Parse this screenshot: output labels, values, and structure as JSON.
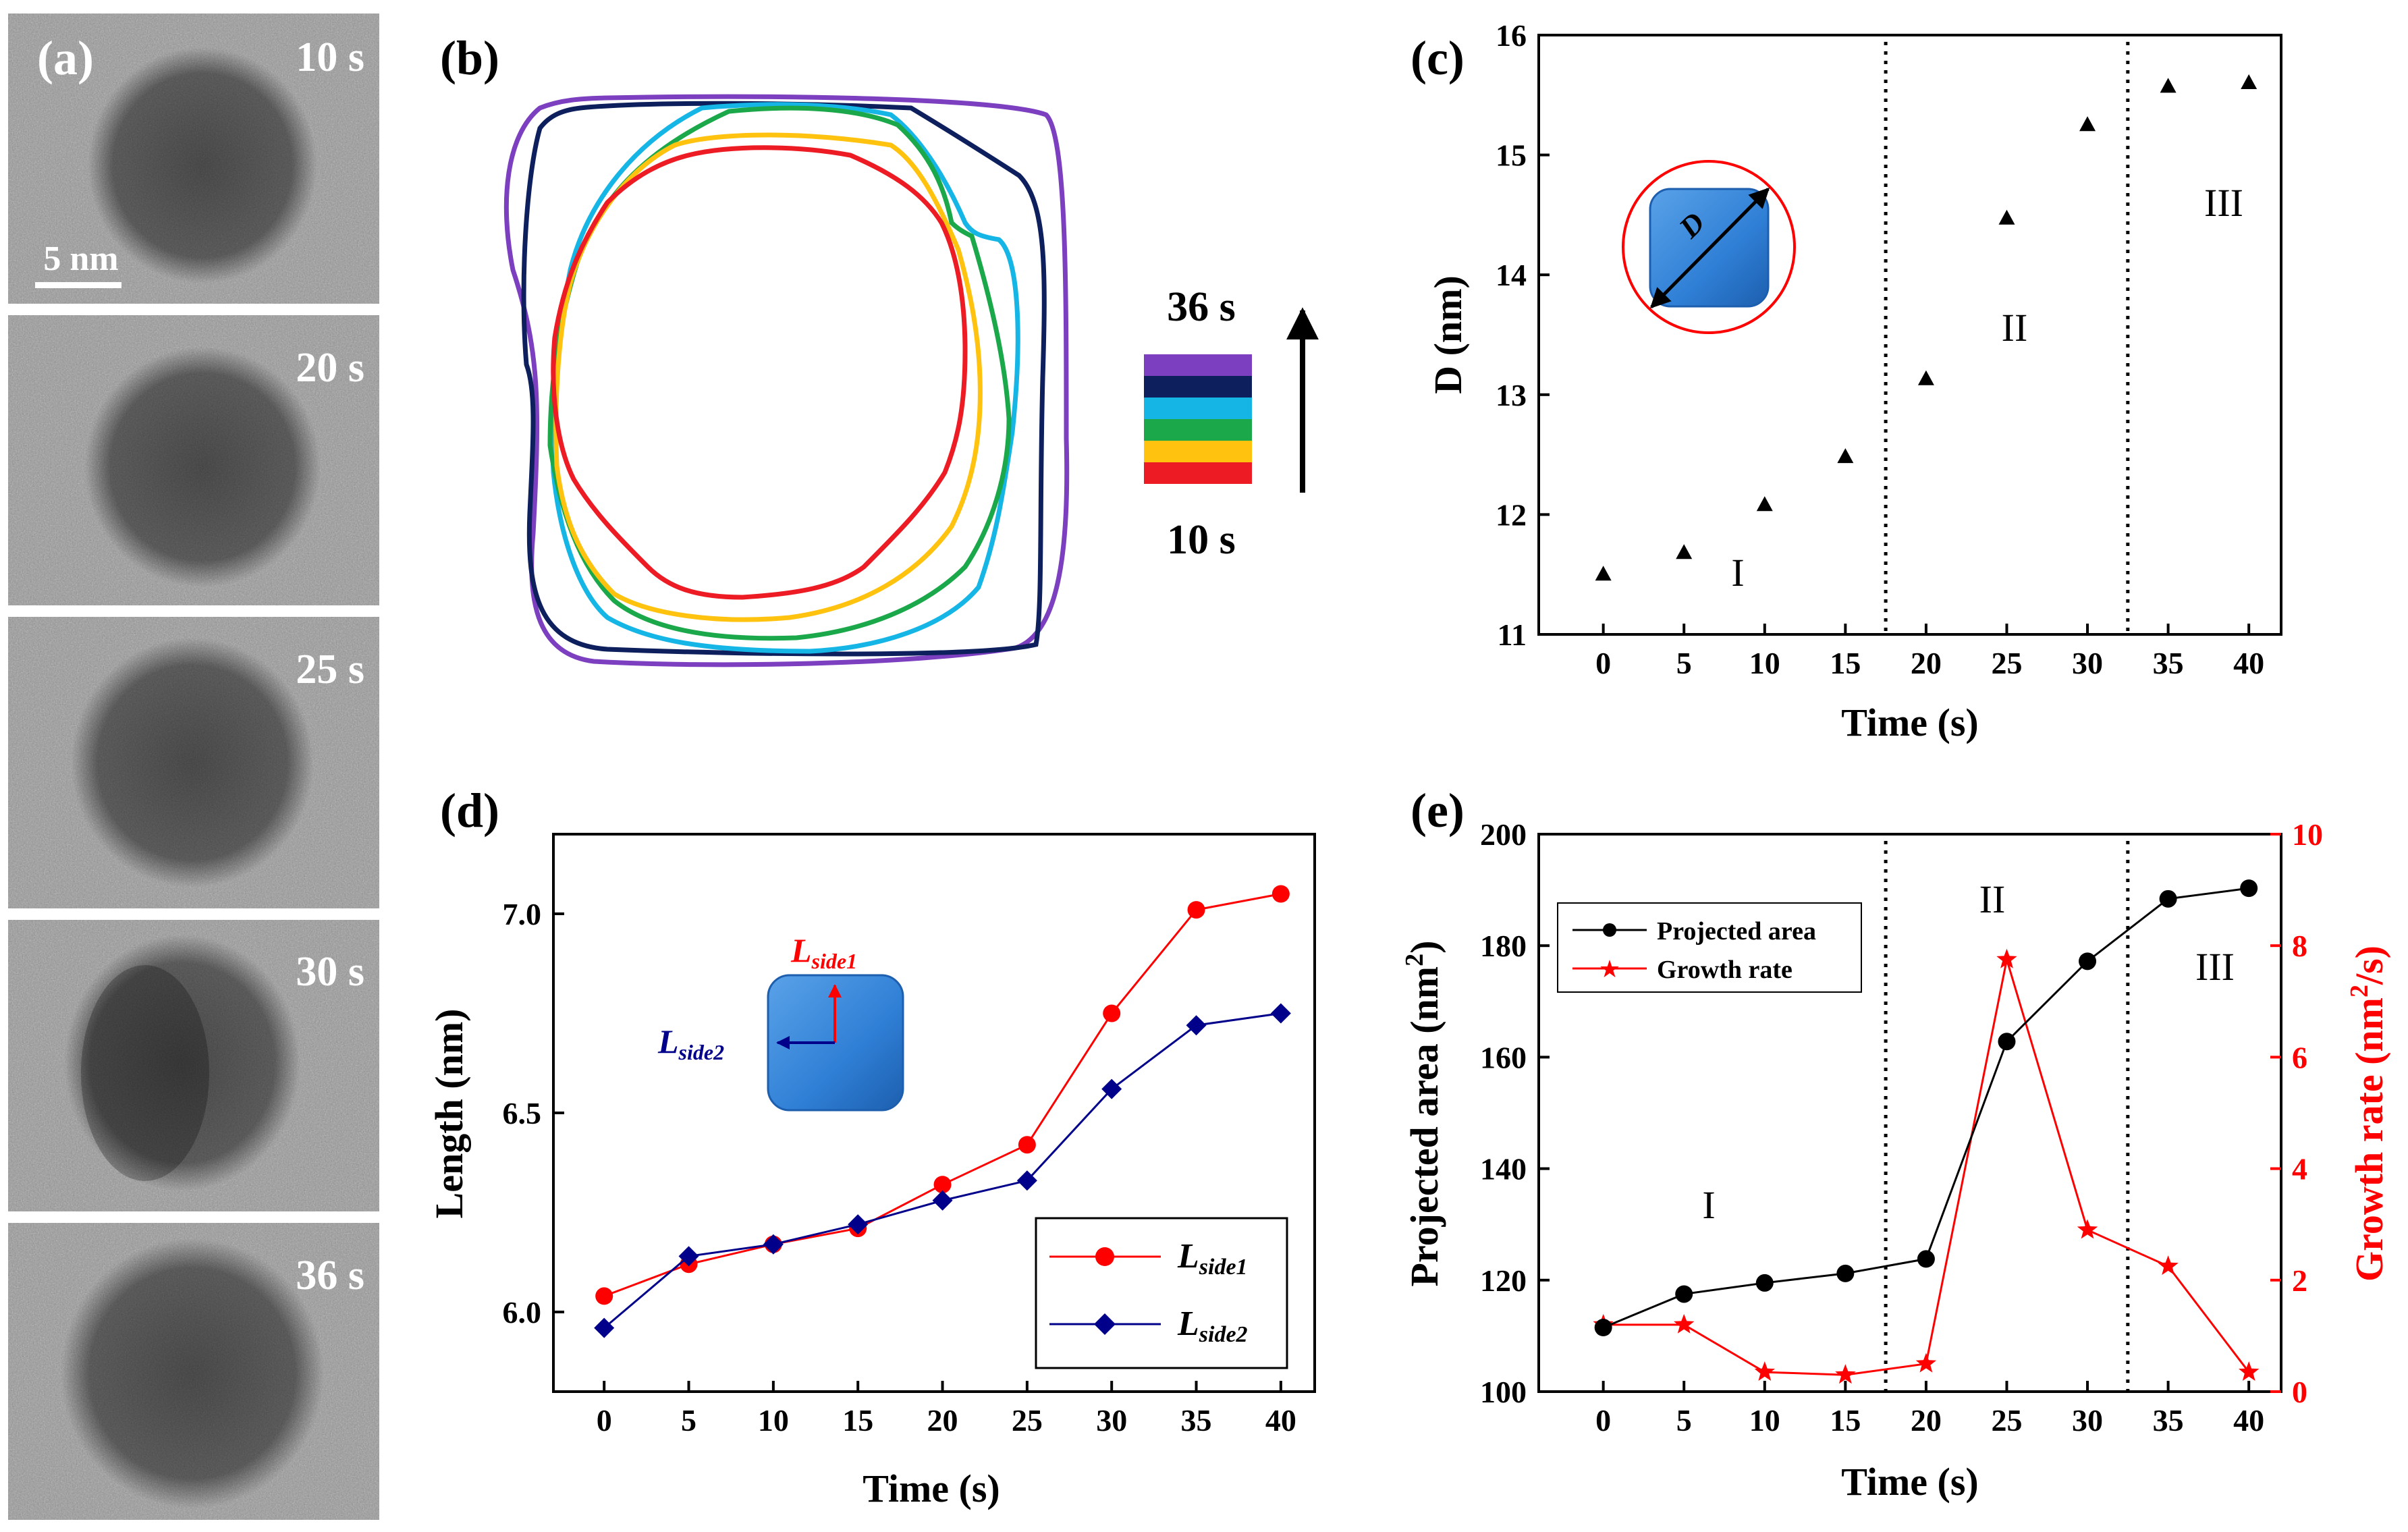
{
  "panels": {
    "a": {
      "letter": "(a)",
      "scale_bar": "5 nm",
      "frames": [
        "10 s",
        "20 s",
        "25 s",
        "30 s",
        "36 s"
      ]
    },
    "b": {
      "letter": "(b)",
      "top_time": "36 s",
      "bottom_time": "10 s",
      "legend_colors": [
        "#7b3fbf",
        "#0d1f5c",
        "#15b5e6",
        "#1aa84a",
        "#ffc20e",
        "#ed1c24"
      ]
    }
  },
  "chart_data": [
    {
      "id": "c",
      "letter": "(c)",
      "type": "scatter",
      "xlabel": "Time (s)",
      "ylabel": "D (nm)",
      "xlim": [
        -4,
        42
      ],
      "ylim": [
        11,
        16
      ],
      "xticks": [
        "0",
        "5",
        "10",
        "15",
        "20",
        "25",
        "30",
        "35",
        "40"
      ],
      "yticks": [
        "11",
        "12",
        "13",
        "14",
        "15",
        "16"
      ],
      "x": [
        0,
        5,
        10,
        15,
        20,
        25,
        30,
        35,
        40
      ],
      "y": [
        11.5,
        11.68,
        12.08,
        12.48,
        13.13,
        14.47,
        15.25,
        15.57,
        15.6
      ],
      "dividers": [
        17.5,
        32.5
      ],
      "regions": [
        "I",
        "II",
        "III"
      ],
      "inset_label": "D"
    },
    {
      "id": "d",
      "letter": "(d)",
      "type": "line",
      "xlabel": "Time (s)",
      "ylabel": "Length (nm)",
      "xlim": [
        -3,
        42
      ],
      "ylim": [
        5.8,
        7.2
      ],
      "xticks": [
        "0",
        "5",
        "10",
        "15",
        "20",
        "25",
        "30",
        "35",
        "40"
      ],
      "yticks": [
        "6.0",
        "6.5",
        "7.0"
      ],
      "x": [
        0,
        5,
        10,
        15,
        20,
        25,
        30,
        35,
        40
      ],
      "series": [
        {
          "name": "L",
          "sub": "side1",
          "color": "#ff0000",
          "values": [
            6.04,
            6.12,
            6.17,
            6.21,
            6.32,
            6.42,
            6.75,
            7.01,
            7.05
          ]
        },
        {
          "name": "L",
          "sub": "side2",
          "color": "#00008b",
          "values": [
            5.96,
            6.14,
            6.17,
            6.22,
            6.28,
            6.33,
            6.56,
            6.72,
            6.75
          ]
        }
      ],
      "inset_labels": {
        "side1": "side1",
        "side2": "side2"
      }
    },
    {
      "id": "e",
      "letter": "(e)",
      "type": "line",
      "xlabel": "Time (s)",
      "ylabel": "Projected area (nm",
      "ylabel_sup": "2",
      "ylabel_tail": ")",
      "y2label": "Growth rate (nm",
      "y2label_sup": "2",
      "y2label_tail": "/s)",
      "xlim": [
        -4,
        42
      ],
      "ylim": [
        100,
        200
      ],
      "y2lim": [
        0,
        10
      ],
      "xticks": [
        "0",
        "5",
        "10",
        "15",
        "20",
        "25",
        "30",
        "35",
        "40"
      ],
      "yticks": [
        "100",
        "120",
        "140",
        "160",
        "180",
        "200"
      ],
      "y2ticks": [
        "0",
        "2",
        "4",
        "6",
        "8",
        "10"
      ],
      "x": [
        0,
        5,
        10,
        15,
        20,
        25,
        30,
        35,
        40
      ],
      "series": [
        {
          "name": "Projected area",
          "color": "#000000",
          "axis": "left",
          "values": [
            111.5,
            117.5,
            119.5,
            121.2,
            123.8,
            162.8,
            177.2,
            188.4,
            190.3
          ]
        },
        {
          "name": "Growth rate",
          "color": "#ff0000",
          "axis": "right",
          "values": [
            1.2,
            1.2,
            0.35,
            0.3,
            0.5,
            7.75,
            2.9,
            2.25,
            0.35
          ]
        }
      ],
      "dividers": [
        17.5,
        32.5
      ],
      "regions": [
        "I",
        "II",
        "III"
      ]
    }
  ]
}
